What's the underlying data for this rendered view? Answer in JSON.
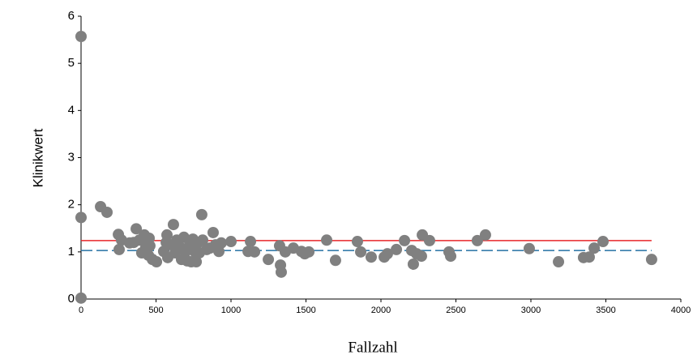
{
  "chart_data": {
    "type": "scatter",
    "x_label": "Fallzahl",
    "y_label": "Klinikwert",
    "x": [
      0,
      0,
      0,
      130,
      173,
      249,
      254,
      270,
      324,
      351,
      368,
      389,
      405,
      422,
      432,
      449,
      454,
      459,
      476,
      503,
      551,
      568,
      573,
      578,
      600,
      616,
      627,
      638,
      654,
      670,
      686,
      697,
      708,
      724,
      735,
      746,
      757,
      768,
      778,
      789,
      805,
      811,
      838,
      859,
      881,
      897,
      919,
      935,
      1000,
      1114,
      1130,
      1157,
      1249,
      1324,
      1330,
      1335,
      1362,
      1416,
      1470,
      1492,
      1519,
      1638,
      1697,
      1843,
      1865,
      1935,
      2022,
      2043,
      2103,
      2157,
      2205,
      2216,
      2238,
      2270,
      2276,
      2324,
      2454,
      2465,
      2643,
      2697,
      2989,
      3184,
      3351,
      3389,
      3422,
      3481,
      3805
    ],
    "values": [
      5.57,
      1.73,
      0.02,
      1.96,
      1.84,
      1.37,
      1.05,
      1.25,
      1.19,
      1.2,
      1.49,
      1.25,
      0.98,
      1.36,
      1.1,
      0.93,
      1.29,
      1.13,
      0.84,
      0.79,
      1.01,
      1.2,
      1.36,
      0.88,
      1.15,
      1.58,
      0.98,
      1.25,
      1.12,
      0.84,
      1.31,
      1.01,
      0.81,
      1.15,
      0.79,
      1.27,
      1.01,
      0.79,
      1.19,
      0.98,
      1.79,
      1.25,
      1.05,
      1.08,
      1.41,
      1.15,
      1.01,
      1.19,
      1.22,
      1.01,
      1.22,
      1.0,
      0.84,
      1.13,
      0.72,
      0.57,
      1.0,
      1.08,
      1.01,
      0.96,
      1.0,
      1.25,
      0.82,
      1.22,
      1.0,
      0.89,
      0.89,
      0.96,
      1.05,
      1.24,
      1.03,
      0.74,
      0.96,
      0.91,
      1.36,
      1.24,
      1.0,
      0.91,
      1.24,
      1.36,
      1.07,
      0.79,
      0.88,
      0.89,
      1.08,
      1.22,
      0.84
    ],
    "color": "#808080",
    "reference_lines": [
      {
        "value": 1.24,
        "color": "#e8262a",
        "dashed": false
      },
      {
        "value": 1.03,
        "color": "#2471a3",
        "dashed": true
      }
    ],
    "xlim": [
      0,
      4000
    ],
    "xticks": [
      0,
      500,
      1000,
      1500,
      2000,
      2500,
      3000,
      3500,
      4000
    ],
    "ylim": [
      0,
      6
    ],
    "yticks": [
      0,
      1,
      2,
      3,
      4,
      5,
      6
    ],
    "grid": false
  }
}
